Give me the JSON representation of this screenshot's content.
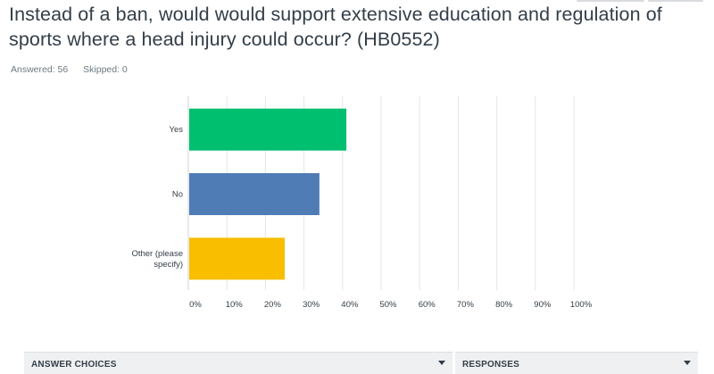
{
  "question": {
    "title": "Instead of a ban, would would support extensive education and regulation of sports where a head injury could occur?  (HB0552)",
    "answered_label": "Answered: 56",
    "skipped_label": "Skipped: 0"
  },
  "chart_data": {
    "type": "bar",
    "orientation": "horizontal",
    "categories": [
      "Yes",
      "No",
      "Other (please specify)"
    ],
    "category_lines": [
      [
        "Yes"
      ],
      [
        "No"
      ],
      [
        "Other (please",
        "specify)"
      ]
    ],
    "values": [
      41,
      34,
      25
    ],
    "colors": [
      "#00bf6f",
      "#507cb6",
      "#f9be00"
    ],
    "xlim": [
      0,
      100
    ],
    "xticks": [
      "0%",
      "10%",
      "20%",
      "30%",
      "40%",
      "50%",
      "60%",
      "70%",
      "80%",
      "90%",
      "100%"
    ],
    "grid": true
  },
  "table": {
    "answer_choices_header": "ANSWER CHOICES",
    "responses_header": "RESPONSES"
  }
}
